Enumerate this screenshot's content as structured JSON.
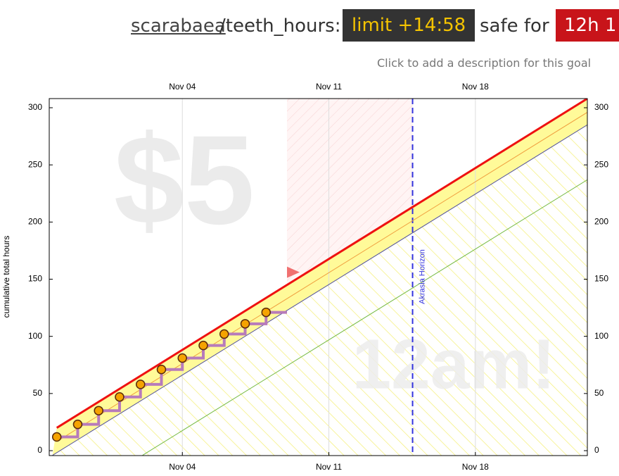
{
  "header": {
    "user": "scarabaea",
    "goal": "/teeth_hours:",
    "limit": "limit +14:58",
    "safe_label": "safe for",
    "safe": "12h 1",
    "description": "Click to add a description for this goal"
  },
  "chart_data": {
    "type": "line",
    "ylabel": "cumulative total hours",
    "xlim": [
      -2.36,
      23.35
    ],
    "ylim": [
      -4.3,
      308
    ],
    "xticks": [
      {
        "value": 4,
        "label": "Nov 04"
      },
      {
        "value": 11,
        "label": "Nov 11"
      },
      {
        "value": 18,
        "label": "Nov 18"
      }
    ],
    "yticks": [
      0,
      50,
      100,
      150,
      200,
      250,
      300
    ],
    "grid": true,
    "today": 9,
    "akrasia_horizon": {
      "x": 15,
      "label": "Akrasia Horizon"
    },
    "watermarks": [
      "$5",
      "12am!"
    ],
    "series": [
      {
        "role": "road",
        "color": "#ee1111",
        "x": [
          -2,
          23.35
        ],
        "values": [
          20,
          308
        ]
      },
      {
        "role": "centerline",
        "color": "#f0a040",
        "x": [
          -2,
          23.35
        ],
        "values": [
          8,
          296
        ]
      },
      {
        "role": "lane-bottom",
        "color": "#55559a",
        "x": [
          -2.2,
          23.35
        ],
        "values": [
          -4,
          285
        ]
      },
      {
        "role": "safety",
        "color": "#77bb44",
        "x": [
          2.1,
          23.35
        ],
        "values": [
          -4,
          237
        ]
      },
      {
        "role": "data",
        "color": "#f5a300",
        "x": [
          -2,
          -1,
          0,
          1,
          2,
          3,
          4,
          5,
          6,
          7,
          8
        ],
        "values": [
          12,
          23,
          35,
          47,
          58,
          71,
          81,
          92,
          102,
          111,
          121
        ]
      }
    ]
  }
}
